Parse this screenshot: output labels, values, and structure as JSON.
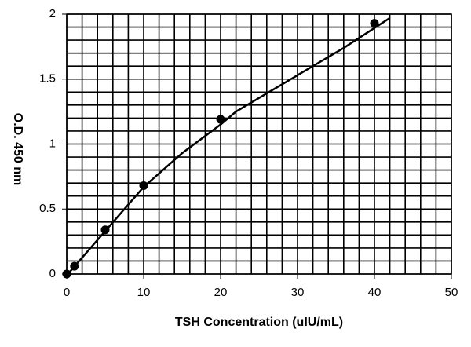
{
  "chart_data": {
    "type": "scatter",
    "x_label": "TSH Concentration (uIU/mL)",
    "y_label": "O.D. 450 nm",
    "x": [
      0,
      1,
      5,
      10,
      20,
      40
    ],
    "values": [
      0,
      0.06,
      0.34,
      0.68,
      1.19,
      1.93
    ],
    "color": "#000000",
    "curve": {
      "x": [
        0,
        5,
        10,
        15,
        20,
        22,
        30,
        36,
        42
      ],
      "values": [
        -0.01,
        0.33,
        0.67,
        0.93,
        1.15,
        1.25,
        1.53,
        1.74,
        1.97
      ]
    },
    "xlim": [
      0,
      50
    ],
    "ylim": [
      0,
      2
    ],
    "xticks": [
      0,
      10,
      20,
      30,
      40,
      50
    ],
    "yticks": [
      0,
      0.5,
      1,
      1.5,
      2
    ],
    "grid": {
      "x_step": 2,
      "y_step": 0.1
    }
  }
}
